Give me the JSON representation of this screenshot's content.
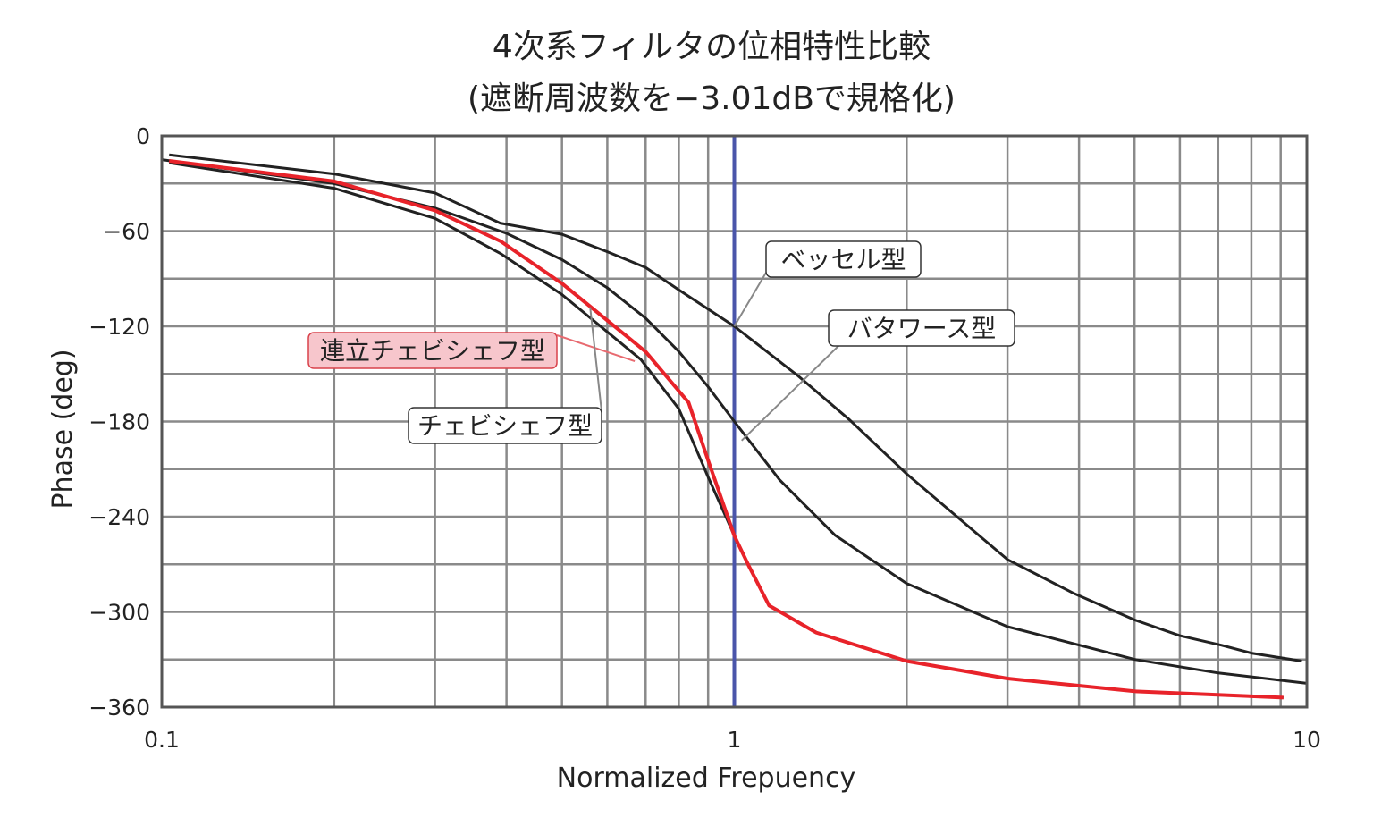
{
  "chart_data": {
    "type": "line",
    "title": "4次系フィルタの位相特性比較",
    "subtitle": "(遮断周波数を−3.01dBで規格化)",
    "xlabel": "Normalized Frepuency",
    "ylabel": "Phase (deg)",
    "xscale": "log",
    "xlim": [
      0.1,
      10
    ],
    "ylim": [
      -360,
      0
    ],
    "xticks": [
      0.1,
      1,
      10
    ],
    "xtick_labels": [
      "0.1",
      "1",
      "10"
    ],
    "yticks": [
      0,
      -60,
      -120,
      -180,
      -240,
      -300,
      -360
    ],
    "ytick_labels": [
      "0",
      "−60",
      "−120",
      "−180",
      "−240",
      "−300",
      "−360"
    ],
    "grid": true,
    "reference_line": {
      "x": 1,
      "color": "#4a55aa"
    },
    "series": [
      {
        "name": "ベッセル型",
        "color": "#222222",
        "x": [
          0.103,
          0.2,
          0.3,
          0.39,
          0.5,
          0.6,
          0.7,
          0.8,
          1.0,
          1.29,
          1.59,
          2.0,
          2.7,
          3.0,
          3.9,
          5.0,
          6.0,
          7.1,
          8.0,
          9.8
        ],
        "y": [
          -12,
          -24,
          -36,
          -55,
          -62,
          -73,
          -83,
          -97,
          -120,
          -151,
          -179,
          -213,
          -253,
          -267,
          -288,
          -305,
          -315,
          -321,
          -326,
          -331
        ],
        "label_anchor": [
          1.0,
          -120
        ]
      },
      {
        "name": "バタワース型",
        "color": "#222222",
        "x": [
          0.1,
          0.2,
          0.3,
          0.4,
          0.5,
          0.6,
          0.7,
          0.8,
          0.9,
          1.0,
          1.2,
          1.5,
          2,
          3,
          5,
          7,
          10
        ],
        "y": [
          -15,
          -30.1,
          -45.5,
          -61.4,
          -78,
          -95.7,
          -114.9,
          -135.9,
          -158.1,
          -180,
          -216.8,
          -251.7,
          -282.1,
          -309.3,
          -329.9,
          -338.5,
          -345
        ],
        "label_anchor": [
          1.03,
          -192
        ]
      },
      {
        "name": "チェビシェフ型",
        "color": "#222222",
        "x": [
          0.103,
          0.2,
          0.3,
          0.39,
          0.5,
          0.687,
          0.8,
          0.9,
          1.0,
          1.06,
          1.15,
          1.39,
          2,
          3,
          5,
          9.1
        ],
        "y": [
          -17,
          -33,
          -52,
          -74,
          -100,
          -141,
          -172,
          -215,
          -252,
          -271,
          -296,
          -313,
          -331,
          -342,
          -350,
          -354
        ],
        "label_anchor": [
          0.67,
          -142
        ]
      },
      {
        "name": "連立チェビシェフ型",
        "color": "#e8232a",
        "x": [
          0.103,
          0.2,
          0.3,
          0.391,
          0.5,
          0.7,
          0.832,
          0.903,
          1.0,
          1.06,
          1.15,
          1.39,
          2,
          3,
          5,
          9.1
        ],
        "y": [
          -15.8,
          -28.7,
          -47,
          -66.5,
          -93,
          -136,
          -168,
          -206,
          -252,
          -271,
          -296,
          -313,
          -331,
          -342,
          -350,
          -354
        ],
        "label_anchor": [
          0.56,
          -108
        ]
      }
    ],
    "annotations": [
      {
        "text": "ベッセル型",
        "style": "white-box"
      },
      {
        "text": "バタワース型",
        "style": "white-box"
      },
      {
        "text": "連立チェビシェフ型",
        "style": "pink-box"
      },
      {
        "text": "チェビシェフ型",
        "style": "white-box"
      }
    ]
  }
}
